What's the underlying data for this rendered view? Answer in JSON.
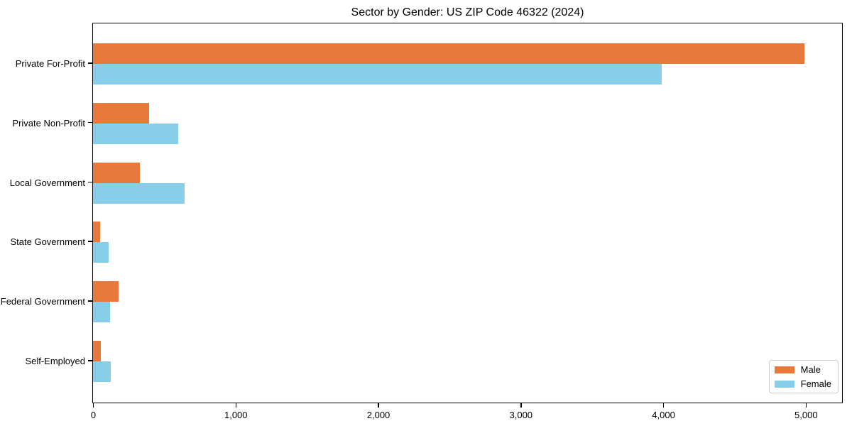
{
  "title": "Sector by Gender: US ZIP Code 46322 (2024)",
  "colors": {
    "male": "#e8793d",
    "female": "#87ceeb",
    "axis": "#000000",
    "background": "#ffffff",
    "legend_border": "#cccccc"
  },
  "chart_data": {
    "type": "bar",
    "orientation": "horizontal",
    "title": "Sector by Gender: US ZIP Code 46322 (2024)",
    "categories": [
      "Private For-Profit",
      "Private Non-Profit",
      "Local Government",
      "State Government",
      "Federal Government",
      "Self-Employed"
    ],
    "series": [
      {
        "name": "Male",
        "color": "#e8793d",
        "values": [
          4990,
          395,
          330,
          50,
          180,
          55
        ]
      },
      {
        "name": "Female",
        "color": "#87ceeb",
        "values": [
          3990,
          600,
          645,
          110,
          120,
          125
        ]
      }
    ],
    "xlabel": "",
    "ylabel": "",
    "xlim": [
      0,
      5250
    ],
    "xticks": [
      0,
      1000,
      2000,
      3000,
      4000,
      5000
    ],
    "xtick_labels": [
      "0",
      "1,000",
      "2,000",
      "3,000",
      "4,000",
      "5,000"
    ],
    "grid": false,
    "legend": {
      "position": "lower right",
      "entries": [
        "Male",
        "Female"
      ]
    }
  }
}
